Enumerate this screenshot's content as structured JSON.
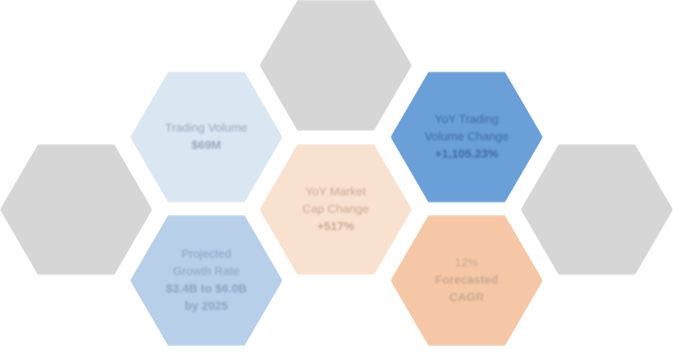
{
  "colors": {
    "gray": "#d6d6d6",
    "light_blue": "#dbe6f3",
    "mid_blue": "#b7cfe9",
    "blue": "#6a9fd8",
    "peach_light": "#f9e1d0",
    "peach": "#f5c7a6",
    "text_gray": "#9aa7b8",
    "text_blue_dark": "#8aa3c2",
    "text_peach": "#c9a890",
    "text_on_blue": "#3f6aa0"
  },
  "hexagons": {
    "trading_volume": {
      "lines": [
        "Trading Volume",
        "$69M"
      ]
    },
    "yoy_trading_volume": {
      "lines": [
        "YoY Trading",
        "Volume Change",
        "+1,105.23%"
      ]
    },
    "yoy_market_cap": {
      "lines": [
        "YoY Market",
        "Cap Change",
        "+517%"
      ]
    },
    "projected_growth": {
      "lines": [
        "Projected",
        "Growth Rate",
        "$3.4B to $6.0B",
        "by 2025"
      ]
    },
    "forecasted_cagr": {
      "lines": [
        "12%",
        "Forecasted",
        "CAGR"
      ]
    }
  }
}
